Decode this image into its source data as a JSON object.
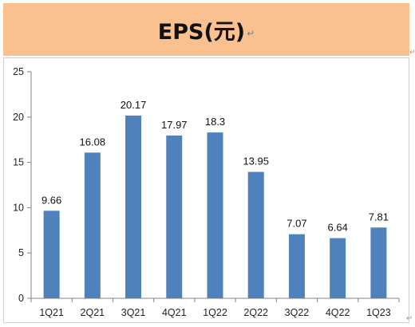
{
  "title": "EPS(元)",
  "title_band_color": "#f9c090",
  "chart_data": {
    "type": "bar",
    "title": "EPS(元)",
    "categories": [
      "1Q21",
      "2Q21",
      "3Q21",
      "4Q21",
      "1Q22",
      "2Q22",
      "3Q22",
      "4Q22",
      "1Q23"
    ],
    "values": [
      9.66,
      16.08,
      20.17,
      17.97,
      18.3,
      13.95,
      7.07,
      6.64,
      7.81
    ],
    "data_labels": [
      "9.66",
      "16.08",
      "20.17",
      "17.97",
      "18.3",
      "13.95",
      "7.07",
      "6.64",
      "7.81"
    ],
    "y_ticks": [
      0,
      5,
      10,
      15,
      20,
      25
    ],
    "ylim": [
      0,
      25
    ],
    "bar_color": "#4f81bd",
    "grid": false,
    "legend": "none"
  }
}
